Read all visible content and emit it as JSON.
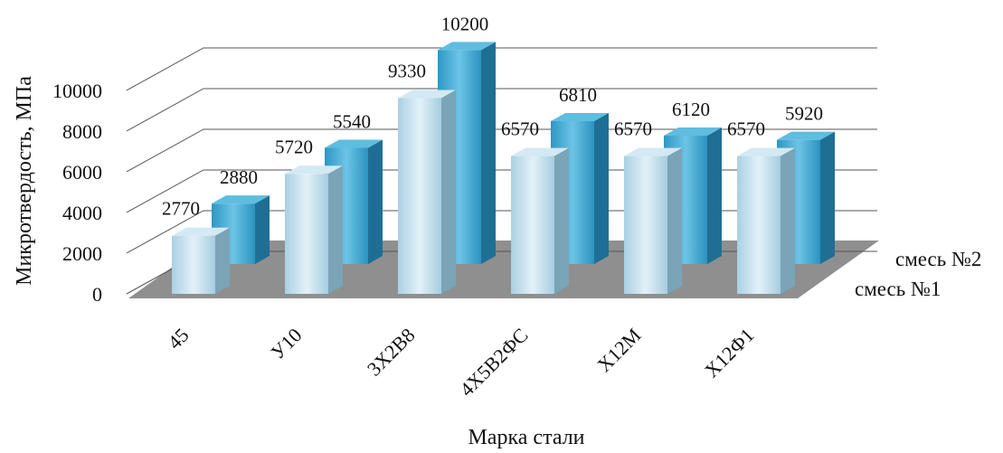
{
  "chart_data": {
    "type": "bar",
    "title": "",
    "xlabel": "Марка стали",
    "ylabel": "Микротвердость, МПа",
    "ylim": [
      0,
      10000
    ],
    "yticks": [
      0,
      2000,
      4000,
      6000,
      8000,
      10000
    ],
    "grid": true,
    "style": "3d-column",
    "categories": [
      "45",
      "У10",
      "3Х2В8",
      "4Х5В2ФС",
      "Х12М",
      "Х12Ф1"
    ],
    "series": [
      {
        "name": "смесь №1",
        "values": [
          2770,
          5720,
          9330,
          6570,
          6570,
          6570
        ],
        "color": "#b9dcec"
      },
      {
        "name": "смесь №2",
        "values": [
          2880,
          5540,
          10200,
          6810,
          6120,
          5920
        ],
        "color": "#3aa6cf"
      }
    ],
    "floor_color": "#8f8f8f"
  }
}
